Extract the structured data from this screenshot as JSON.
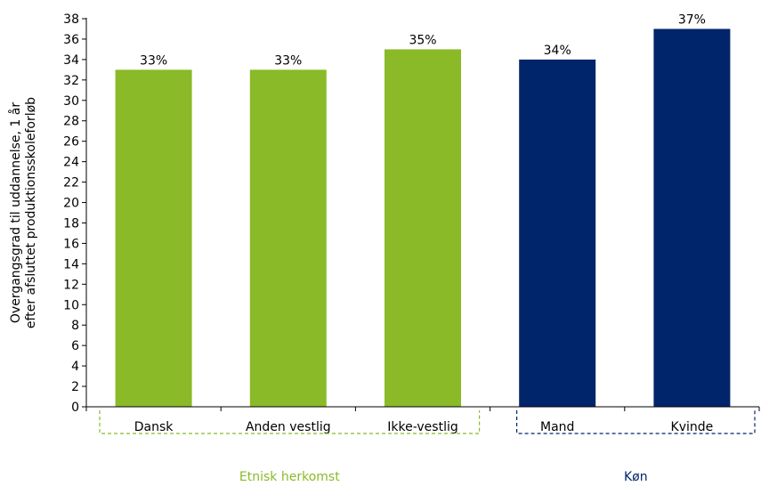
{
  "chart_data": {
    "type": "bar",
    "ylabel_line1": "Overgangsgrad til uddannelse, 1 år",
    "ylabel_line2": "efter afsluttet produktionsskoleforløb",
    "ylim": [
      0,
      38
    ],
    "ytick_step": 2,
    "yticks": [
      "0",
      "2",
      "4",
      "6",
      "8",
      "10",
      "12",
      "14",
      "16",
      "18",
      "20",
      "22",
      "24",
      "26",
      "28",
      "30",
      "32",
      "34",
      "36",
      "38"
    ],
    "grid": false,
    "categories": [
      "Dansk",
      "Anden vestlig",
      "Ikke-vestlig",
      "Mand",
      "Kvinde"
    ],
    "values": [
      33,
      33,
      35,
      34,
      37
    ],
    "data_labels": [
      "33%",
      "33%",
      "35%",
      "34%",
      "37%"
    ],
    "groups": [
      {
        "name": "Etnisk herkomst",
        "color": "#8aba28",
        "members": [
          0,
          1,
          2
        ]
      },
      {
        "name": "Køn",
        "color": "#00256a",
        "members": [
          3,
          4
        ]
      }
    ]
  }
}
